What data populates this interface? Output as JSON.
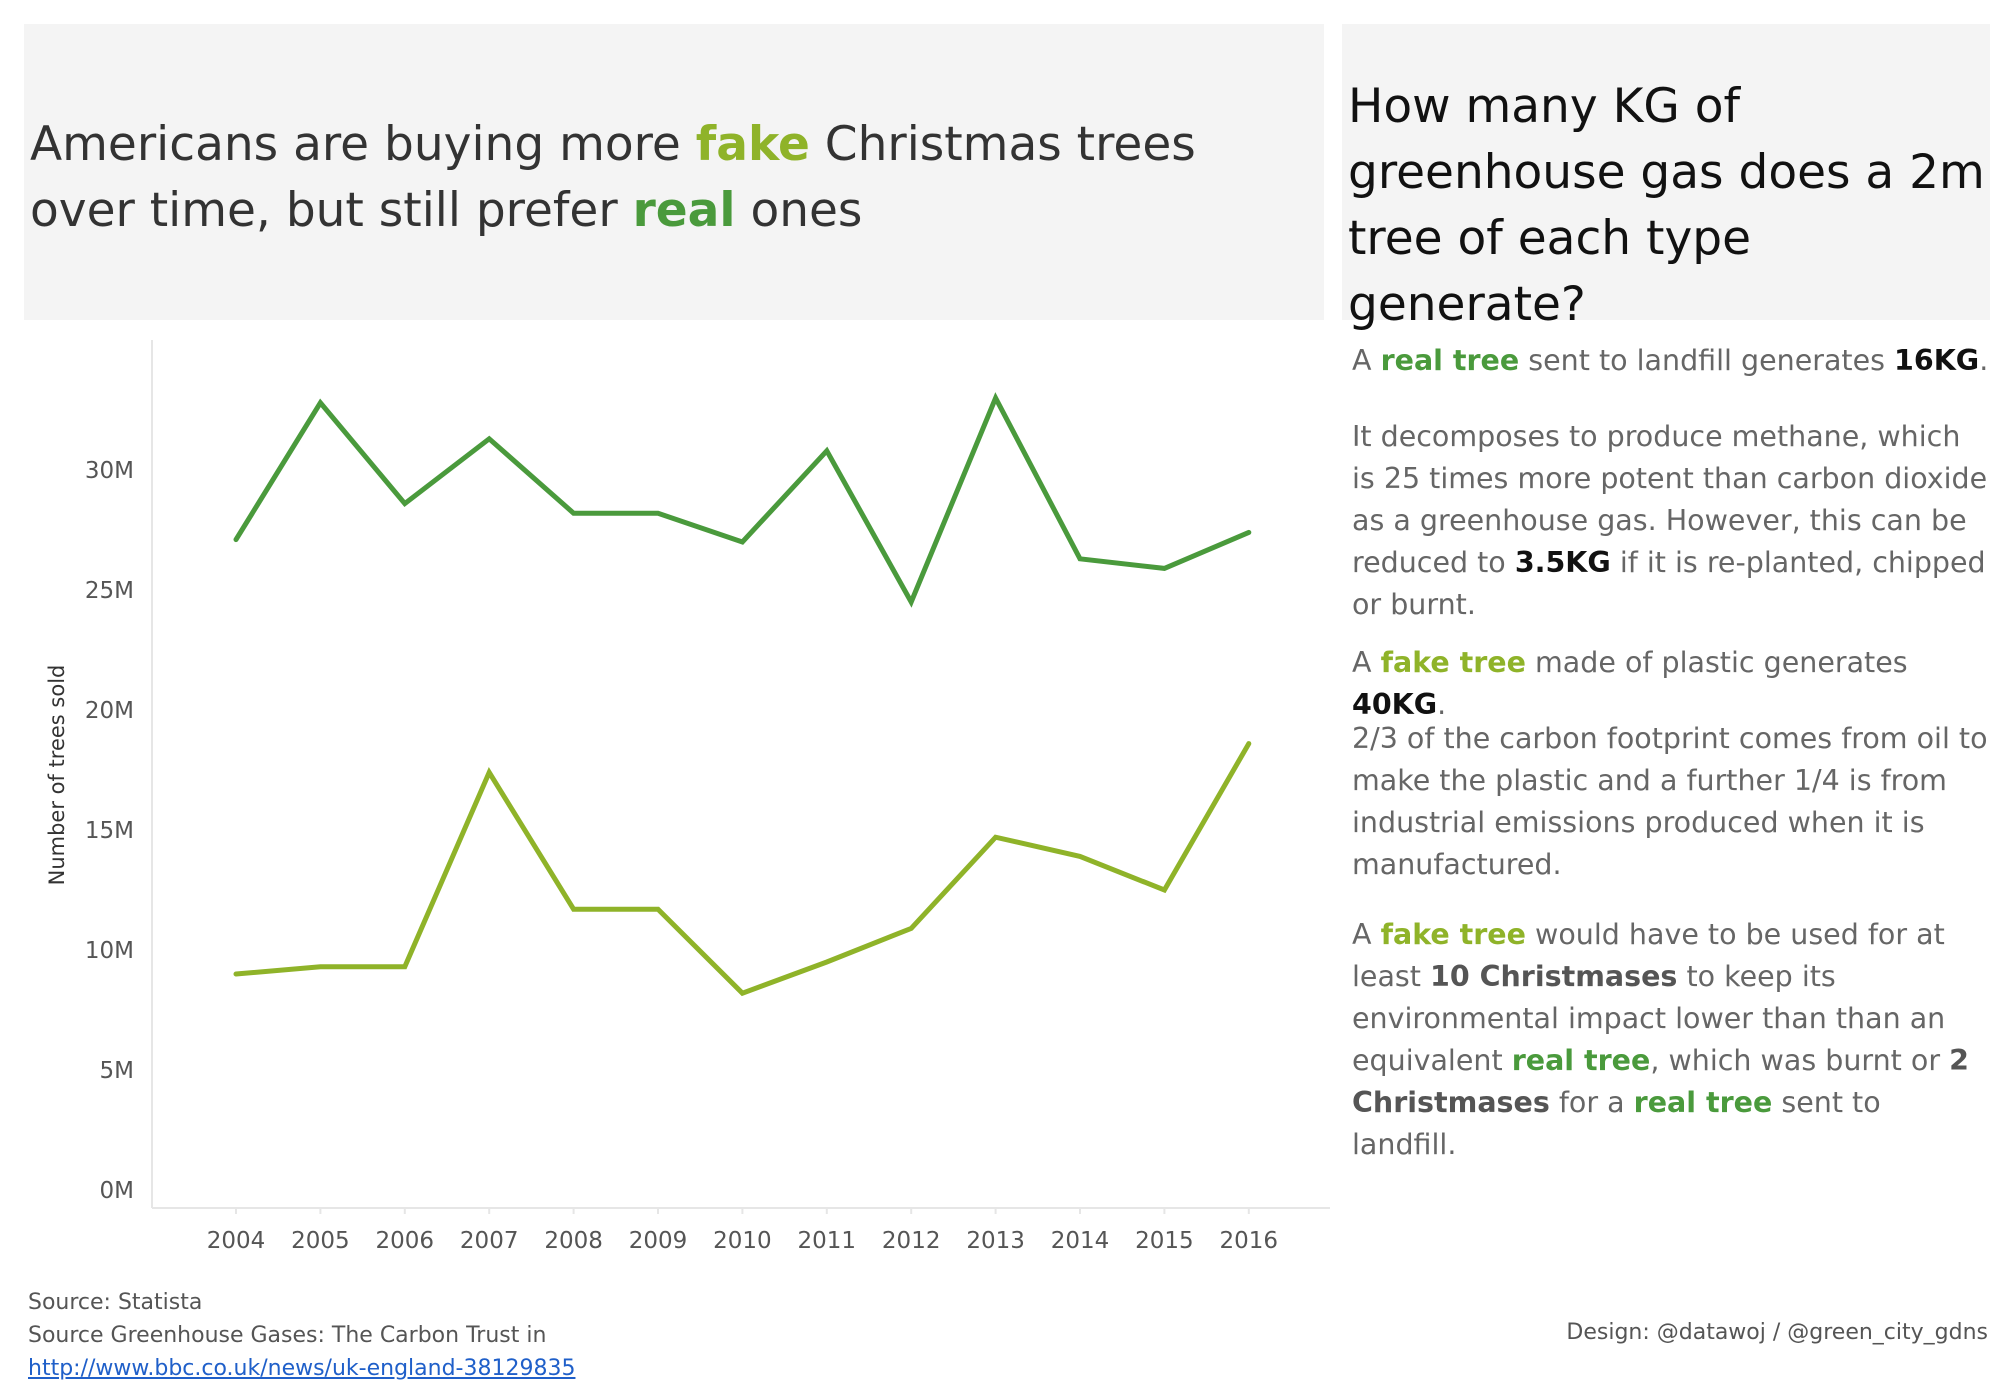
{
  "title": {
    "part1": "Americans are buying more ",
    "fake": "fake",
    "part2": " Christmas trees over time, but still prefer ",
    "real": "real",
    "part3": " ones"
  },
  "question": "How many KG of greenhouse gas does a 2m tree of each type generate?",
  "info": {
    "p1": {
      "a": "A ",
      "real_tree": "real tree",
      "b": " sent to landfill generates ",
      "value": "16KG",
      "c": "."
    },
    "p2": {
      "a": "It decomposes to produce methane, which is 25 times more potent than carbon dioxide as a greenhouse gas.  However, this can be reduced to ",
      "value": "3.5KG",
      "b": " if it is re-planted, chipped or burnt."
    },
    "p3": {
      "a": "A ",
      "fake_tree": "fake tree",
      "b": " made of plastic generates ",
      "value": "40KG",
      "c": "."
    },
    "p4": {
      "text": "2/3 of the carbon footprint comes from oil to make the plastic and a further 1/4 is from industrial emissions produced when it is manufactured."
    },
    "p5": {
      "a": "A ",
      "fake_tree": "fake tree",
      "b": " would have to be used for at least ",
      "bold1": "10 Christmases",
      "c": " to keep its environmental impact lower than than an equivalent ",
      "real_tree1": "real tree",
      "d": ", which was burnt or ",
      "bold2": "2 Christmases",
      "e": " for a ",
      "real_tree2": "real tree",
      "f": " sent to landfill."
    }
  },
  "sources": {
    "line1": "Source: Statista",
    "line2": "Source Greenhouse Gases: The Carbon Trust in",
    "link": "http://www.bbc.co.uk/news/uk-england-38129835"
  },
  "credit": "Design: @datawoj / @green_city_gdns",
  "colors": {
    "real": "#4a9a3c",
    "fake": "#8fb329"
  },
  "chart_data": {
    "type": "line",
    "x": [
      2004,
      2005,
      2006,
      2007,
      2008,
      2009,
      2010,
      2011,
      2012,
      2013,
      2014,
      2015,
      2016
    ],
    "series": [
      {
        "key": "real",
        "values": [
          27.1,
          32.8,
          28.6,
          31.3,
          28.2,
          28.2,
          27.0,
          30.8,
          24.5,
          33.0,
          26.3,
          25.9,
          27.4
        ]
      },
      {
        "key": "fake",
        "values": [
          9.0,
          9.3,
          9.3,
          17.4,
          11.7,
          11.7,
          8.2,
          9.5,
          10.9,
          14.7,
          13.9,
          12.5,
          18.6
        ]
      }
    ],
    "ylabel": "Number of trees sold",
    "yticks": [
      0,
      5,
      10,
      15,
      20,
      25,
      30
    ],
    "ytick_labels": [
      "0M",
      "5M",
      "10M",
      "15M",
      "20M",
      "25M",
      "30M"
    ],
    "ylim": [
      0,
      35
    ],
    "units": "millions of trees",
    "grid": false,
    "legend": "none"
  }
}
